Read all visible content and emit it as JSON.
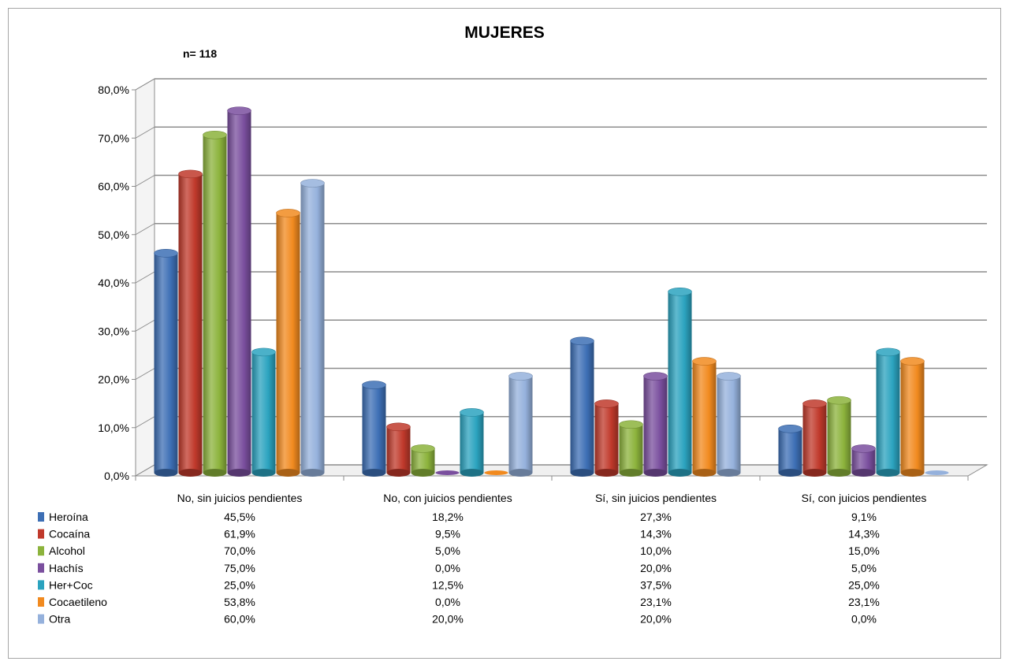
{
  "chart_data": {
    "type": "bar",
    "title": "MUJERES",
    "note": "n= 118",
    "categories": [
      "No, sin juicios pendientes",
      "No, con juicios pendientes",
      "Sí, sin juicios pendientes",
      "Sí, con juicios pendientes"
    ],
    "series": [
      {
        "name": "Heroína",
        "values": [
          45.5,
          18.2,
          27.3,
          9.1
        ],
        "labels": [
          "45,5%",
          "18,2%",
          "27,3%",
          "9,1%"
        ],
        "color": "#3d6fb5"
      },
      {
        "name": "Cocaína",
        "values": [
          61.9,
          9.5,
          14.3,
          14.3
        ],
        "labels": [
          "61,9%",
          "9,5%",
          "14,3%",
          "14,3%"
        ],
        "color": "#c0392b"
      },
      {
        "name": "Alcohol",
        "values": [
          70.0,
          5.0,
          10.0,
          15.0
        ],
        "labels": [
          "70,0%",
          "5,0%",
          "10,0%",
          "15,0%"
        ],
        "color": "#8cb33c"
      },
      {
        "name": "Hachís",
        "values": [
          75.0,
          0.0,
          20.0,
          5.0
        ],
        "labels": [
          "75,0%",
          "0,0%",
          "20,0%",
          "5,0%"
        ],
        "color": "#7a4f9e"
      },
      {
        "name": "Her+Coc",
        "values": [
          25.0,
          12.5,
          37.5,
          25.0
        ],
        "labels": [
          "25,0%",
          "12,5%",
          "37,5%",
          "25,0%"
        ],
        "color": "#2ba3bf"
      },
      {
        "name": "Cocaetileno",
        "values": [
          53.8,
          0.0,
          23.1,
          23.1
        ],
        "labels": [
          "53,8%",
          "0,0%",
          "23,1%",
          "23,1%"
        ],
        "color": "#f18a1f"
      },
      {
        "name": "Otra",
        "values": [
          60.0,
          20.0,
          20.0,
          0.0
        ],
        "labels": [
          "60,0%",
          "20,0%",
          "20,0%",
          "0,0%"
        ],
        "color": "#95b1dc"
      }
    ],
    "yticks": [
      "0,0%",
      "10,0%",
      "20,0%",
      "30,0%",
      "40,0%",
      "50,0%",
      "60,0%",
      "70,0%",
      "80,0%"
    ],
    "ylim": [
      0,
      80
    ],
    "grid": true,
    "legend": "data-table-below"
  }
}
